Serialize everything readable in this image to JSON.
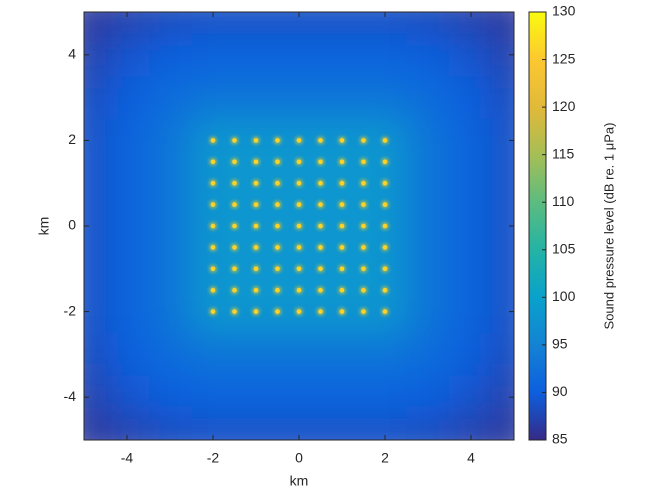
{
  "chart_data": {
    "type": "heatmap",
    "xlabel": "km",
    "ylabel": "km",
    "xlim": [
      -5,
      5
    ],
    "ylim": [
      -5,
      5
    ],
    "xticks": [
      -4,
      -2,
      0,
      2,
      4
    ],
    "yticks": [
      -4,
      -2,
      0,
      2,
      4
    ],
    "x": [
      -5,
      -4,
      -3,
      -2,
      -1,
      0,
      1,
      2,
      3,
      4,
      5
    ],
    "y": [
      5,
      4,
      3,
      2,
      1,
      0,
      -1,
      -2,
      -3,
      -4,
      -5
    ],
    "z": [
      [
        86,
        87,
        88,
        88.5,
        88.5,
        88.5,
        88.5,
        88.5,
        88,
        87,
        86
      ],
      [
        87,
        89,
        90,
        90.5,
        90.5,
        90.5,
        90.5,
        90.5,
        90,
        89,
        87
      ],
      [
        88,
        90,
        92,
        93,
        93,
        93,
        93,
        93,
        92,
        90,
        88
      ],
      [
        88.5,
        90.5,
        93,
        98,
        98,
        98,
        98,
        98,
        93,
        90.5,
        88.5
      ],
      [
        88.5,
        90.5,
        93,
        98,
        98,
        98,
        98,
        98,
        93,
        90.5,
        88.5
      ],
      [
        88.5,
        90.5,
        93,
        98,
        98,
        98,
        98,
        98,
        93,
        90.5,
        88.5
      ],
      [
        88.5,
        90.5,
        93,
        98,
        98,
        98,
        98,
        98,
        93,
        90.5,
        88.5
      ],
      [
        88.5,
        90.5,
        93,
        98,
        98,
        98,
        98,
        98,
        93,
        90.5,
        88.5
      ],
      [
        88,
        90,
        92,
        93,
        93,
        93,
        93,
        93,
        92,
        90,
        88
      ],
      [
        87,
        89,
        90,
        90.5,
        90.5,
        90.5,
        90.5,
        90.5,
        90,
        89,
        87
      ],
      [
        86,
        87,
        88,
        88.5,
        88.5,
        88.5,
        88.5,
        88.5,
        88,
        87,
        86
      ]
    ],
    "sources": {
      "x": [
        -2,
        -1.5,
        -1,
        -0.5,
        0,
        0.5,
        1,
        1.5,
        2
      ],
      "y": [
        2,
        1.5,
        1,
        0.5,
        0,
        -0.5,
        -1,
        -1.5,
        -2
      ],
      "level": 126
    },
    "colorbar_label": "Sound pressure level (dB re. 1 μPa)",
    "clim": [
      85,
      130
    ],
    "cticks": [
      85,
      90,
      95,
      100,
      105,
      110,
      115,
      120,
      125,
      130
    ],
    "colormap": [
      "#352a87",
      "#0d5fde",
      "#1483d4",
      "#09a2cb",
      "#24b3a5",
      "#5cbc7f",
      "#a6be55",
      "#e1b939",
      "#fcc830",
      "#f9fb0e"
    ]
  }
}
